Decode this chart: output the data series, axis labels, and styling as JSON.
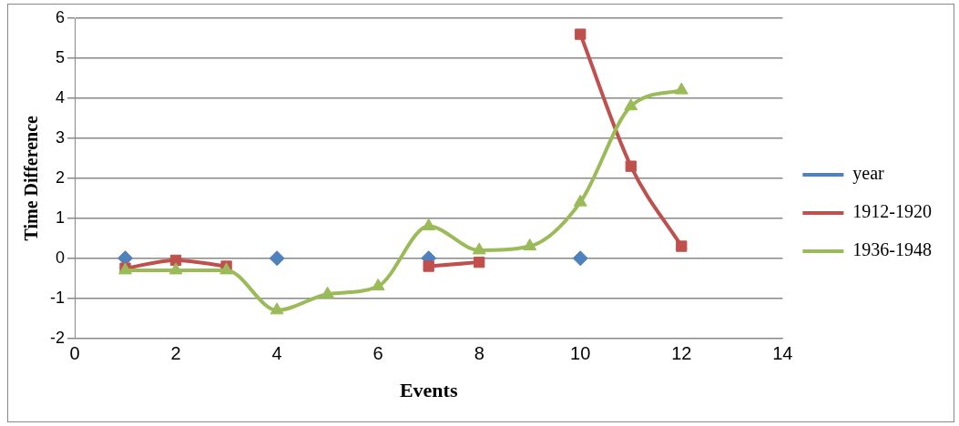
{
  "chart_data": {
    "type": "line",
    "xlabel": "Events",
    "ylabel": "Time Difference",
    "x": [
      1,
      2,
      3,
      4,
      5,
      6,
      7,
      8,
      9,
      10,
      11,
      12
    ],
    "series": [
      {
        "name": "year",
        "type": "scatter",
        "color": "#4f81bd",
        "marker": "diamond",
        "x": [
          1,
          4,
          7,
          10
        ],
        "values": [
          0,
          0,
          0,
          0
        ]
      },
      {
        "name": "1912-1920",
        "color": "#c0504d",
        "marker": "square",
        "values": [
          -0.25,
          -0.05,
          -0.2,
          null,
          null,
          null,
          -0.2,
          -0.1,
          null,
          5.6,
          2.3,
          0.3
        ]
      },
      {
        "name": "1936-1948",
        "color": "#9bbb59",
        "marker": "triangle",
        "values": [
          -0.3,
          -0.3,
          -0.3,
          -1.3,
          -0.9,
          -0.7,
          0.8,
          0.2,
          0.3,
          1.4,
          3.8,
          4.2
        ]
      }
    ],
    "xlim": [
      0,
      14
    ],
    "xticks": [
      0,
      2,
      4,
      6,
      8,
      10,
      12,
      14
    ],
    "ylim": [
      -2,
      6
    ],
    "yticks": [
      -2,
      -1,
      0,
      1,
      2,
      3,
      4,
      5,
      6
    ],
    "grid": "y",
    "legend": "right"
  }
}
